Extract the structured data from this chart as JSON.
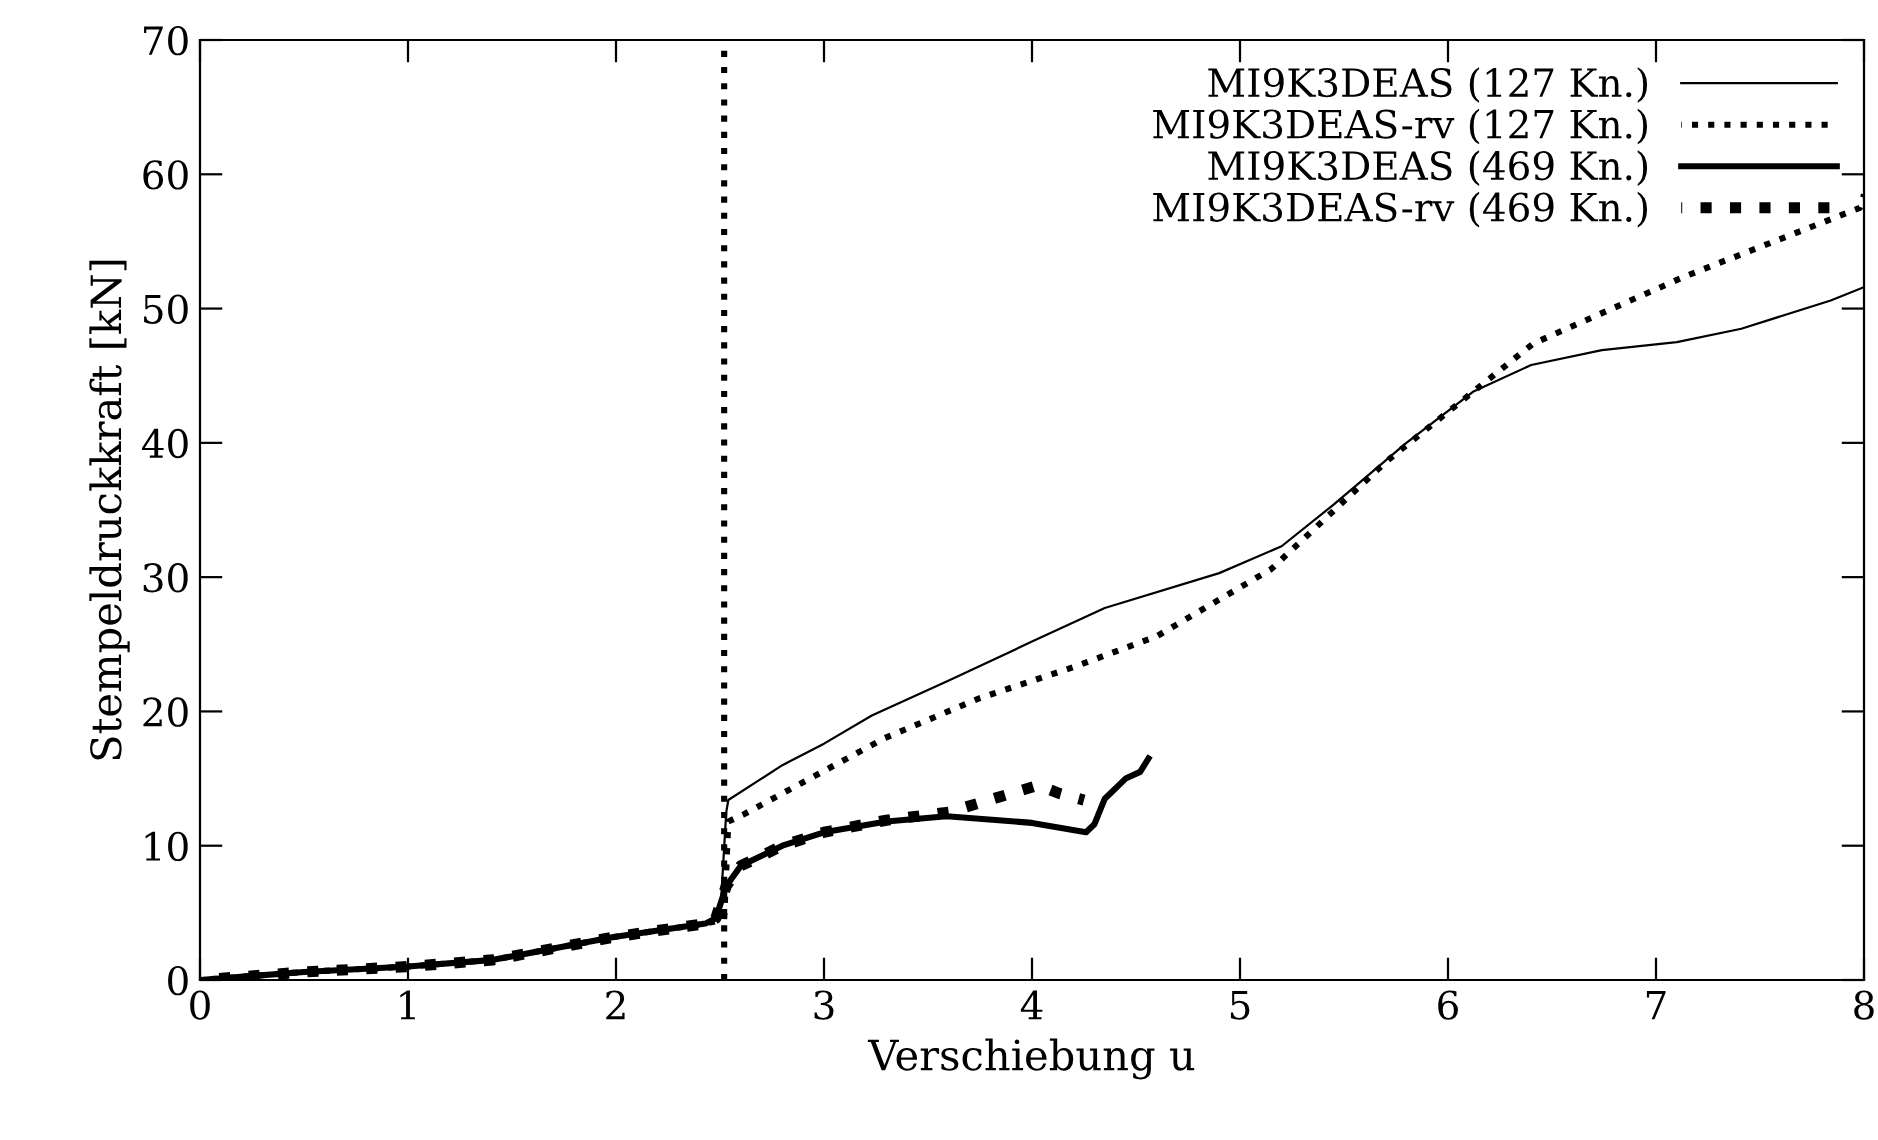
{
  "chart_data": {
    "type": "line",
    "xlabel": "Verschiebung u",
    "ylabel": "Stempeldruckkraft [kN]",
    "xlim": [
      0,
      8
    ],
    "ylim": [
      0,
      70
    ],
    "xticks": [
      0,
      1,
      2,
      3,
      4,
      5,
      6,
      7,
      8
    ],
    "yticks": [
      0,
      10,
      20,
      30,
      40,
      50,
      60,
      70
    ],
    "grid": false,
    "legend": "top right",
    "marker": "none",
    "ref_lines": [
      {
        "axis": "x",
        "value": 2.52,
        "color": "#000000",
        "line_style": "dotted"
      }
    ],
    "series": [
      {
        "name": "MI9K3DEAS (127 Kn.)",
        "color": "#000000",
        "line_style": "solid",
        "x": [
          0,
          0.5,
          1,
          1.41,
          1.99,
          2.43,
          2.5,
          2.53,
          2.54,
          2.8,
          3.0,
          3.23,
          3.6,
          4.0,
          4.35,
          4.9,
          5.2,
          5.45,
          5.8,
          6.12,
          6.4,
          6.74,
          7.1,
          7.41,
          7.84,
          8
        ],
        "values": [
          0,
          0.6,
          1.0,
          1.5,
          3.2,
          4.2,
          4.6,
          12.5,
          13.4,
          16,
          17.6,
          19.7,
          22.3,
          25.2,
          27.7,
          30.3,
          32.3,
          35.4,
          40,
          43.8,
          45.8,
          46.9,
          47.5,
          48.5,
          50.6,
          51.6
        ]
      },
      {
        "name": "MI9K3DEAS-rv (127 Kn.)",
        "color": "#000000",
        "line_style": "dotted",
        "x": [
          0,
          0.5,
          1,
          1.41,
          1.99,
          2.43,
          2.52,
          2.54,
          2.61,
          3.29,
          3.75,
          4.2,
          4.6,
          5.15,
          5.71,
          6.41,
          7.14,
          7.98,
          8
        ],
        "values": [
          0,
          0.6,
          1.0,
          1.5,
          3.2,
          4.2,
          4.5,
          11.8,
          12.3,
          18,
          21,
          23.3,
          25.6,
          30.6,
          38.7,
          47.4,
          52.4,
          57.5,
          58.5
        ]
      },
      {
        "name": "MI9K3DEAS (469 Kn.)",
        "color": "#000000",
        "line_style": "solid",
        "x": [
          0,
          0.5,
          1,
          1.41,
          1.99,
          2.43,
          2.48,
          2.53,
          2.6,
          2.8,
          3.0,
          3.3,
          3.59,
          4.0,
          4.26,
          4.3,
          4.35,
          4.45,
          4.52,
          4.56
        ],
        "values": [
          0,
          0.6,
          1.0,
          1.5,
          3.2,
          4.2,
          4.6,
          7,
          8.5,
          10,
          11,
          11.8,
          12.2,
          11.7,
          11.0,
          11.6,
          13.5,
          15,
          15.5,
          16.5
        ]
      },
      {
        "name": "MI9K3DEAS-rv (469 Kn.)",
        "color": "#000000",
        "line_style": "dotted",
        "x": [
          0,
          0.5,
          1,
          1.41,
          1.99,
          2.43,
          2.48,
          2.53,
          2.6,
          2.8,
          3.0,
          3.3,
          3.6,
          4.03,
          4.13,
          4.25
        ],
        "values": [
          0,
          0.6,
          1.0,
          1.5,
          3.2,
          4.2,
          4.6,
          7,
          8.5,
          10,
          11,
          11.9,
          12.5,
          14.5,
          13.9,
          13.4
        ]
      }
    ]
  }
}
